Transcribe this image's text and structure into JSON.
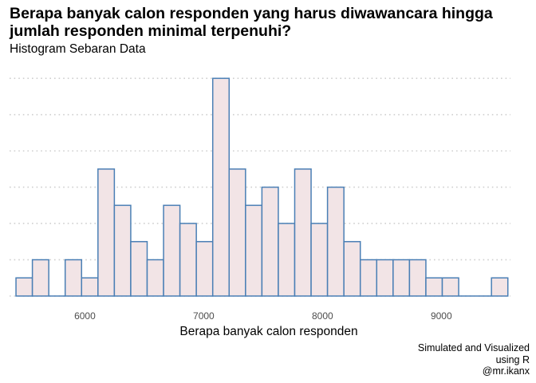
{
  "title": "Berapa banyak calon responden yang harus diwawancara hingga jumlah responden minimal terpenuhi?",
  "subtitle": "Histogram Sebaran Data",
  "caption": {
    "line1": "Simulated and Visualized",
    "line2": "using R",
    "line3": "@mr.ikanx"
  },
  "colors": {
    "bar_fill": "#f2e4e6",
    "bar_stroke": "#4a7fb5",
    "grid": "#cfcfcf",
    "tick_text": "#4d4d4d"
  },
  "chart_data": {
    "type": "bar",
    "title": "Berapa banyak calon responden yang harus diwawancara hingga jumlah responden minimal terpenuhi?",
    "subtitle": "Histogram Sebaran Data",
    "xlabel": "Berapa banyak calon responden",
    "ylabel": "",
    "grid": "horizontal dotted",
    "bin_width": 138,
    "bin_start": 5420,
    "xlim": [
      5366,
      9582
    ],
    "ylim": [
      0,
      12.8
    ],
    "y_gridlines": [
      0,
      2,
      4,
      6,
      8,
      10,
      12
    ],
    "x_ticks": [
      6000,
      7000,
      8000,
      9000
    ],
    "x_tick_labels": [
      "6000",
      "7000",
      "8000",
      "9000"
    ],
    "counts": [
      1,
      2,
      0,
      2,
      1,
      7,
      5,
      3,
      2,
      5,
      4,
      3,
      12,
      7,
      5,
      6,
      4,
      7,
      4,
      6,
      3,
      2,
      2,
      2,
      2,
      1,
      1,
      0,
      0,
      1
    ]
  }
}
